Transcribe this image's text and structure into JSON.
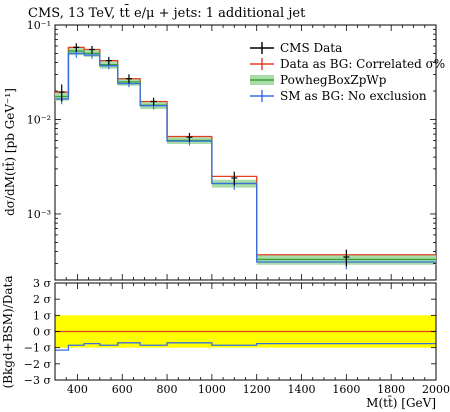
{
  "chart_data": {
    "type": "line",
    "title": "CMS, 13 TeV, tt̄ e/μ + jets: 1 additional jet",
    "xlabel": "M(tt̄) [GeV]",
    "ylabel": "dσ/dM(tt̄) [pb GeV⁻¹]",
    "xlim": [
      300,
      2000
    ],
    "ylim": [
      0.0002,
      0.1
    ],
    "yscale": "log",
    "x_ticks": [
      "400",
      "600",
      "800",
      "1000",
      "1200",
      "1400",
      "1600",
      "1800",
      "2000"
    ],
    "y_ticks": [
      "10⁻³",
      "10⁻²",
      "10⁻¹"
    ],
    "bin_edges": [
      300,
      360,
      430,
      500,
      580,
      680,
      800,
      1000,
      1200,
      2000
    ],
    "series": [
      {
        "name": "CMS Data",
        "color": "#000000",
        "x": [
          330,
          395,
          465,
          540,
          630,
          740,
          900,
          1100,
          1600
        ],
        "y": [
          0.0195,
          0.058,
          0.055,
          0.042,
          0.027,
          0.0155,
          0.0065,
          0.0024,
          0.00035
        ],
        "yerr": [
          0.004,
          0.006,
          0.005,
          0.004,
          0.003,
          0.0015,
          0.0007,
          0.0004,
          7e-05
        ]
      },
      {
        "name": "Data as BG: Correlated σ%",
        "color": "#e04020",
        "y": [
          0.0195,
          0.058,
          0.055,
          0.042,
          0.027,
          0.0155,
          0.0066,
          0.0025,
          0.00037
        ]
      },
      {
        "name": "PowhegBoxZpWp",
        "color": "#3aa03a",
        "band_color": "#a8dca8",
        "y": [
          0.0175,
          0.053,
          0.05,
          0.038,
          0.025,
          0.0142,
          0.006,
          0.0021,
          0.00033
        ],
        "band_low": [
          0.0158,
          0.048,
          0.046,
          0.0345,
          0.0228,
          0.0129,
          0.0055,
          0.0019,
          0.00029
        ],
        "band_high": [
          0.0192,
          0.058,
          0.054,
          0.0415,
          0.0272,
          0.0155,
          0.0065,
          0.0023,
          0.00037
        ]
      },
      {
        "name": "SM as BG: No exclusion",
        "color": "#3a6fe0",
        "y": [
          0.0165,
          0.05,
          0.048,
          0.037,
          0.024,
          0.014,
          0.0059,
          0.0021,
          0.00031
        ],
        "yerr": [
          0.002,
          0.005,
          0.004,
          0.003,
          0.002,
          0.0012,
          0.0006,
          0.0003,
          5e-05
        ]
      }
    ],
    "legend_position": "top-right",
    "ratio_panel": {
      "ylabel": "(Bkgd+BSM)/Data",
      "ylim": [
        -3,
        3
      ],
      "y_ticks": [
        "3 σ",
        "2 σ",
        "1 σ",
        "0 σ",
        "−1 σ",
        "−2 σ",
        "−3 σ"
      ],
      "band": [
        -1,
        1
      ],
      "band_color": "#ffff00",
      "reference_color": "#e04020",
      "series_color": "#3a6fe0",
      "values": [
        -1.15,
        -0.85,
        -0.75,
        -0.85,
        -0.7,
        -0.85,
        -0.7,
        -0.85,
        -0.75
      ]
    }
  }
}
